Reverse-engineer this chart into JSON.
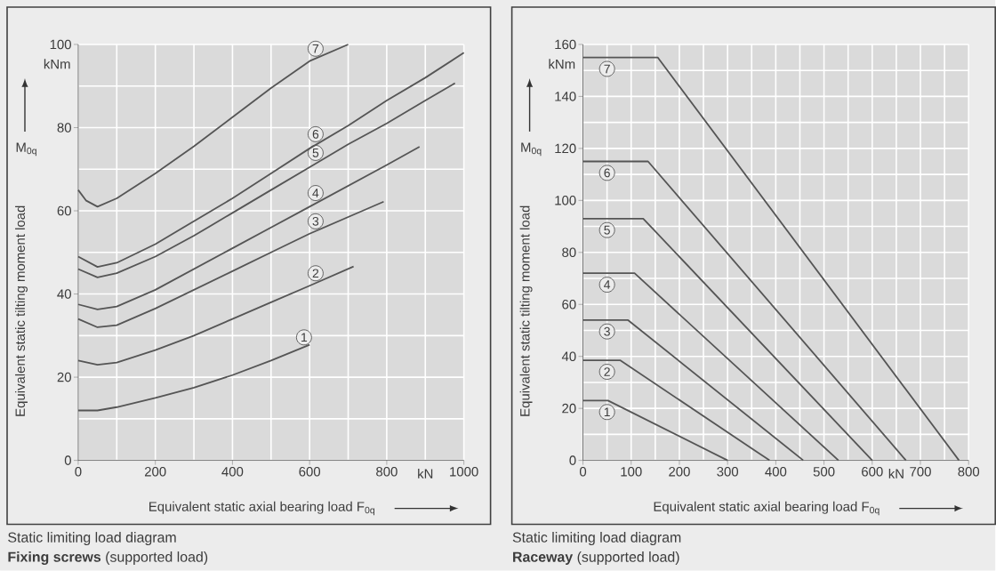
{
  "chart_data": [
    {
      "type": "line",
      "title": "Static limiting load diagram",
      "subtitle": "**Fixing screws** (supported load)",
      "xlabel": "Equivalent static axial bearing load F$_{0q}$",
      "ylabel": "Equivalent static tilting moment load",
      "annotations": [
        "M$_{0q}$",
        "kNm",
        "kN"
      ],
      "xlim": [
        0,
        1000
      ],
      "ylim": [
        0,
        100
      ],
      "xticks": [
        0,
        200,
        400,
        600,
        800,
        1000
      ],
      "yticks": [
        0,
        20,
        40,
        60,
        80,
        100
      ],
      "grid": true,
      "marker": "none",
      "line_style": "solid",
      "series": [
        {
          "name": "1",
          "color": "#555555",
          "x": [
            0,
            50,
            100,
            200,
            300,
            400,
            500,
            600
          ],
          "values": [
            12,
            12,
            12.8,
            15,
            17.5,
            20.5,
            24,
            27.8
          ]
        },
        {
          "name": "2",
          "color": "#555555",
          "x": [
            0,
            50,
            100,
            200,
            300,
            400,
            500,
            600,
            714
          ],
          "values": [
            24,
            23,
            23.5,
            26.5,
            30,
            34,
            38,
            42,
            46.6
          ]
        },
        {
          "name": "3",
          "color": "#555555",
          "x": [
            0,
            50,
            100,
            200,
            300,
            400,
            500,
            600,
            700,
            792
          ],
          "values": [
            34,
            32,
            32.5,
            36.5,
            41,
            45.5,
            50,
            54.5,
            58.5,
            62.2
          ]
        },
        {
          "name": "4",
          "color": "#555555",
          "x": [
            0,
            50,
            100,
            200,
            300,
            400,
            500,
            600,
            700,
            800,
            885
          ],
          "values": [
            37.5,
            36.3,
            37,
            41,
            46,
            51,
            56,
            61,
            66,
            71,
            75.4
          ]
        },
        {
          "name": "5",
          "color": "#555555",
          "x": [
            0,
            50,
            100,
            200,
            300,
            400,
            500,
            600,
            700,
            800,
            900,
            977
          ],
          "values": [
            46,
            44,
            45,
            49,
            54,
            59.5,
            65,
            70.5,
            76,
            81,
            86.5,
            90.7
          ]
        },
        {
          "name": "6",
          "color": "#555555",
          "x": [
            0,
            50,
            100,
            200,
            300,
            400,
            500,
            600,
            700,
            800,
            900,
            1000
          ],
          "values": [
            49,
            46.5,
            47.5,
            52,
            57.5,
            63,
            69,
            75,
            80.5,
            86.5,
            92,
            98
          ]
        },
        {
          "name": "7",
          "color": "#555555",
          "x": [
            0,
            20,
            50,
            100,
            200,
            300,
            400,
            500,
            600,
            700
          ],
          "values": [
            65,
            62.5,
            61,
            63,
            69,
            75.5,
            82.5,
            89.5,
            96,
            100
          ]
        }
      ]
    },
    {
      "type": "line",
      "title": "Static limiting load diagram",
      "subtitle": "**Raceway** (supported load)",
      "xlabel": "Equivalent static axial bearing load F$_{0q}$",
      "ylabel": "Equivalent static tilting moment load",
      "annotations": [
        "M$_{0q}$",
        "kNm",
        "kN"
      ],
      "xlim": [
        0,
        800
      ],
      "ylim": [
        0,
        160
      ],
      "xticks": [
        0,
        100,
        200,
        300,
        400,
        500,
        600,
        700,
        800
      ],
      "yticks": [
        0,
        20,
        40,
        60,
        80,
        100,
        120,
        140,
        160
      ],
      "grid": true,
      "marker": "none",
      "line_style": "solid",
      "series": [
        {
          "name": "1",
          "color": "#555555",
          "x": [
            0,
            52,
            300
          ],
          "values": [
            23,
            23,
            0
          ]
        },
        {
          "name": "2",
          "color": "#555555",
          "x": [
            0,
            77,
            387
          ],
          "values": [
            38.5,
            38.5,
            0
          ]
        },
        {
          "name": "3",
          "color": "#555555",
          "x": [
            0,
            93,
            457
          ],
          "values": [
            54,
            54,
            0
          ]
        },
        {
          "name": "4",
          "color": "#555555",
          "x": [
            0,
            107,
            530
          ],
          "values": [
            72,
            72,
            0
          ]
        },
        {
          "name": "5",
          "color": "#555555",
          "x": [
            0,
            125,
            600
          ],
          "values": [
            93,
            93,
            0
          ]
        },
        {
          "name": "6",
          "color": "#555555",
          "x": [
            0,
            135,
            670
          ],
          "values": [
            115,
            115,
            0
          ]
        },
        {
          "name": "7",
          "color": "#555555",
          "x": [
            0,
            155,
            780
          ],
          "values": [
            155,
            155,
            0
          ]
        }
      ]
    }
  ]
}
